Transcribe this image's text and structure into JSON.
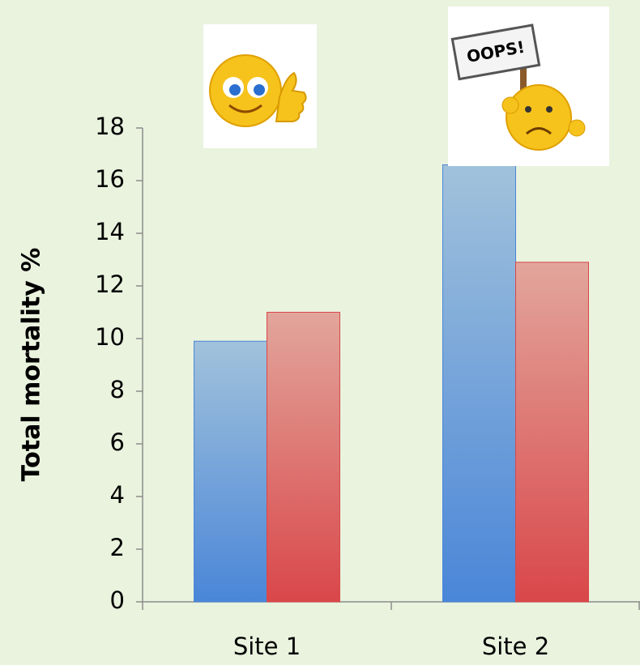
{
  "chart_data": {
    "type": "bar",
    "y_label": "Total mortality %",
    "categories": [
      "Site 1",
      "Site 2"
    ],
    "series": [
      {
        "color": "#4a86d8",
        "values": [
          9.9,
          16.6
        ]
      },
      {
        "color": "#d9474a",
        "values": [
          11,
          12.9
        ]
      }
    ],
    "ylim": [
      0,
      18
    ],
    "yticks": [
      0,
      2,
      4,
      6,
      8,
      10,
      12,
      14,
      16,
      18
    ],
    "annotations": [
      "OOPS!"
    ]
  }
}
